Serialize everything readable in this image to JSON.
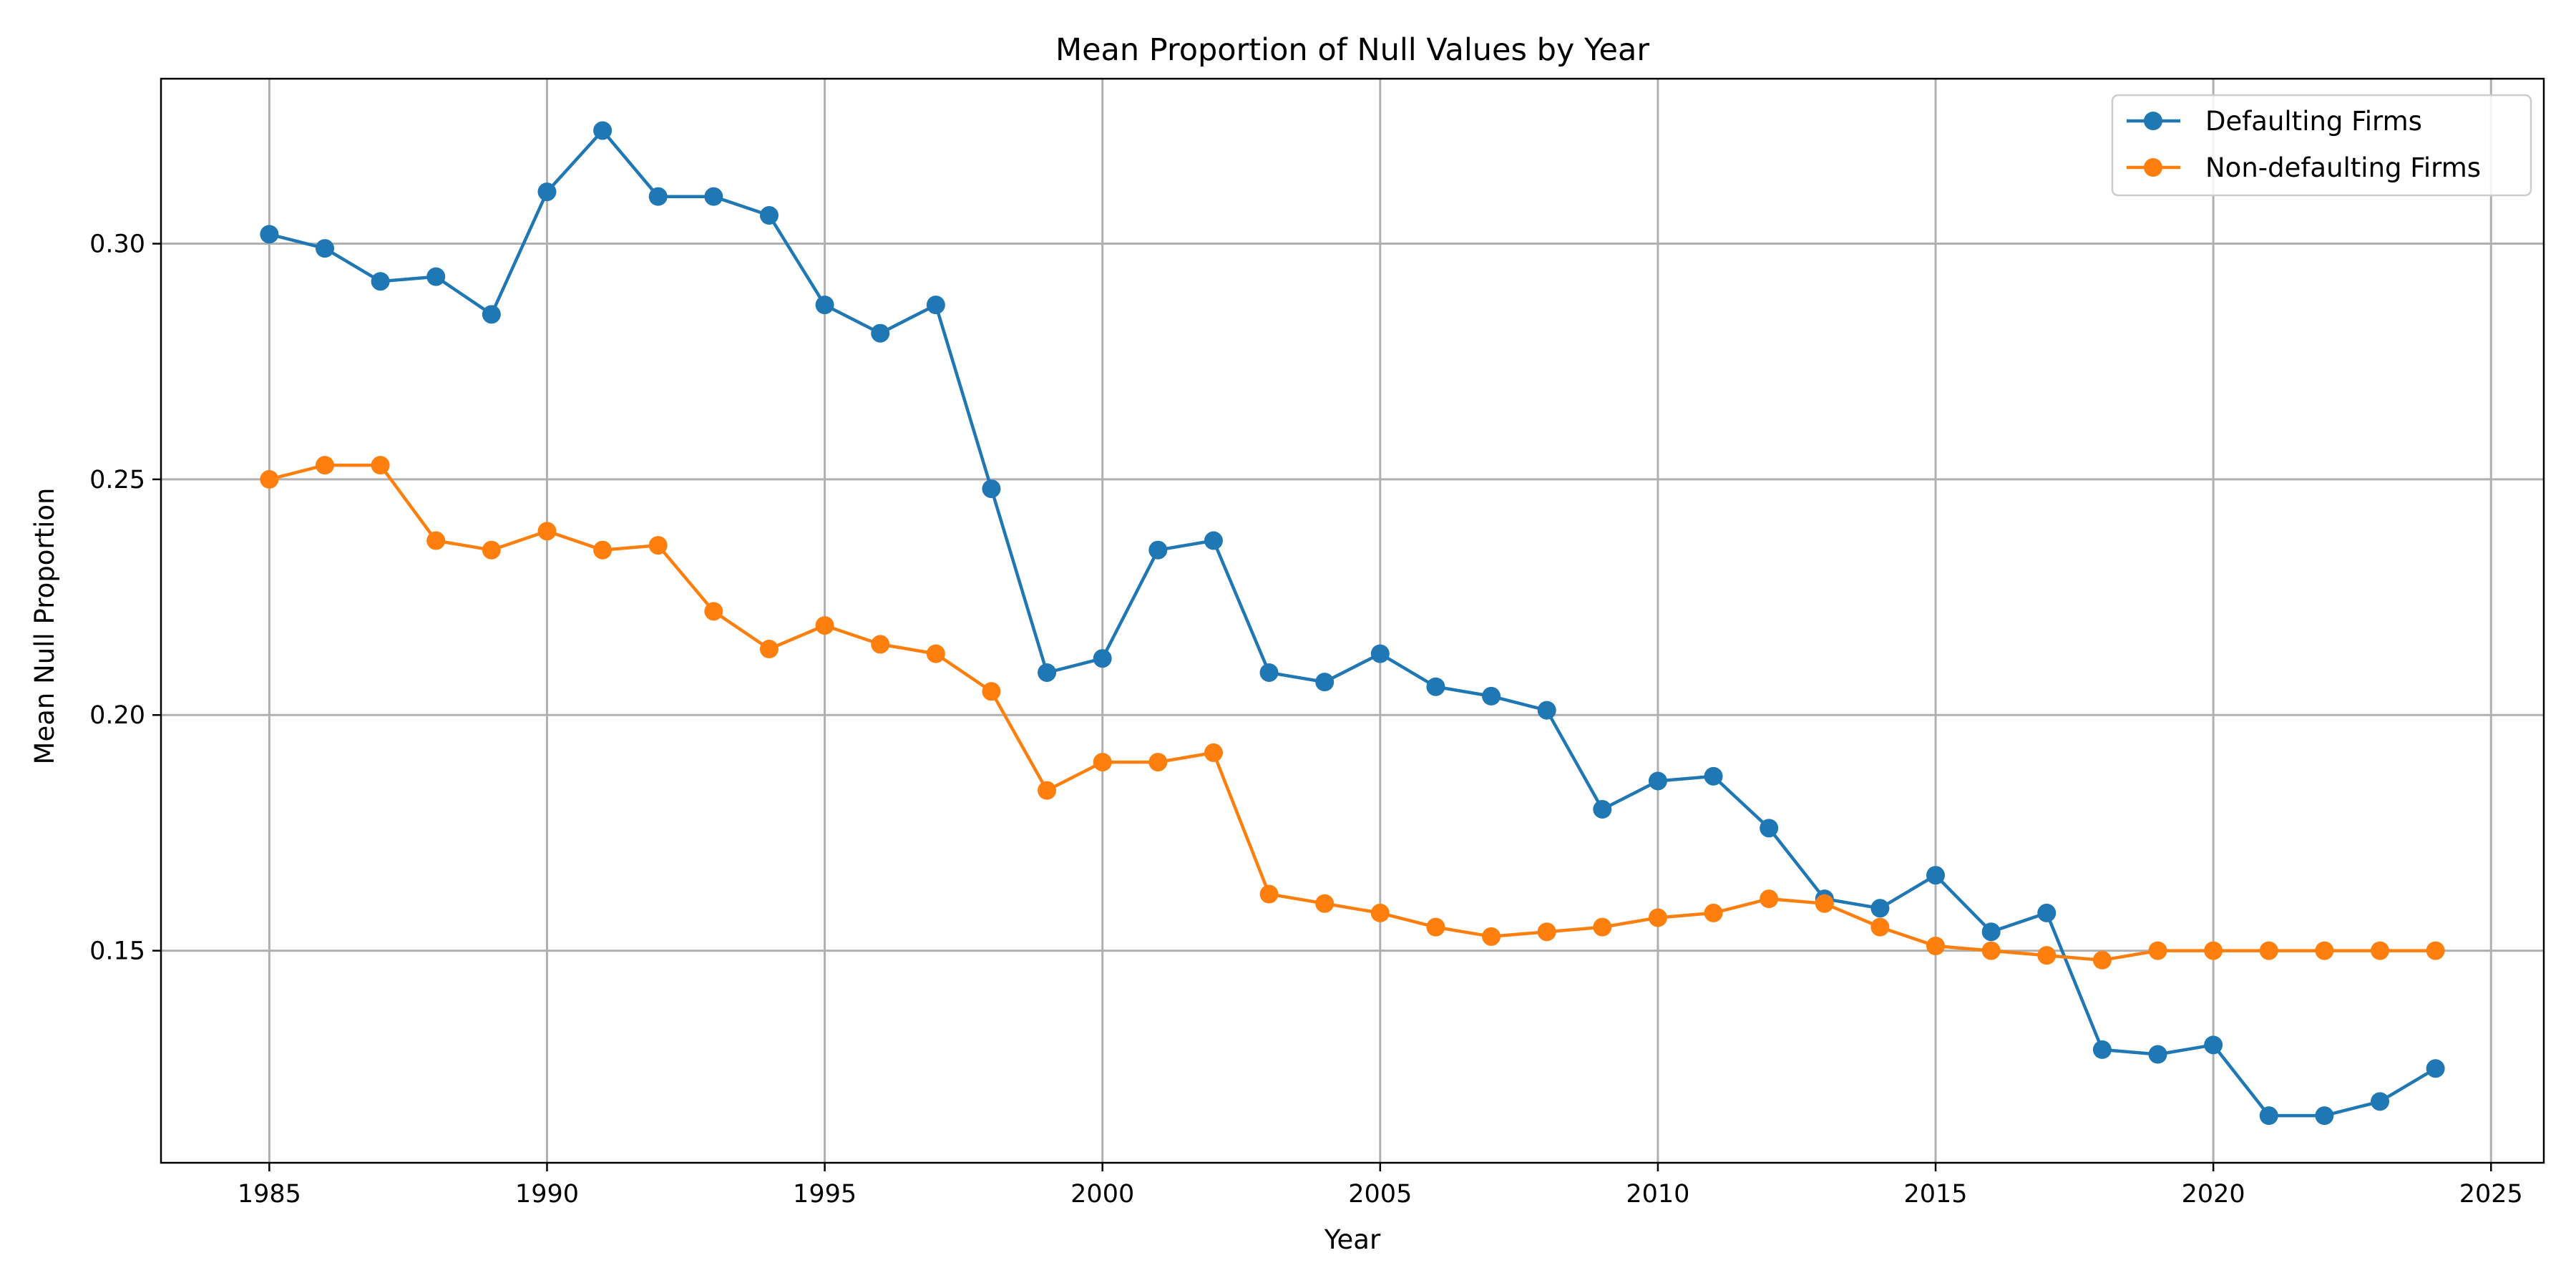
{
  "chart_data": {
    "type": "line",
    "title": "Mean Proportion of Null Values by Year",
    "xlabel": "Year",
    "ylabel": "Mean Null Proportion",
    "xlim": [
      1983.05,
      2025.95
    ],
    "ylim": [
      0.105,
      0.335
    ],
    "xticks": [
      1985,
      1990,
      1995,
      2000,
      2005,
      2010,
      2015,
      2020,
      2025
    ],
    "xtick_labels": [
      "1985",
      "1990",
      "1995",
      "2000",
      "2005",
      "2010",
      "2015",
      "2020",
      "2025"
    ],
    "yticks": [
      0.15,
      0.2,
      0.25,
      0.3
    ],
    "ytick_labels": [
      "0.15",
      "0.20",
      "0.25",
      "0.30"
    ],
    "grid": true,
    "legend_position": "top-right",
    "x": [
      1985,
      1986,
      1987,
      1988,
      1989,
      1990,
      1991,
      1992,
      1993,
      1994,
      1995,
      1996,
      1997,
      1998,
      1999,
      2000,
      2001,
      2002,
      2003,
      2004,
      2005,
      2006,
      2007,
      2008,
      2009,
      2010,
      2011,
      2012,
      2013,
      2014,
      2015,
      2016,
      2017,
      2018,
      2019,
      2020,
      2021,
      2022,
      2023,
      2024
    ],
    "series": [
      {
        "name": "Defaulting Firms",
        "color": "#1f77b4",
        "marker": "circle",
        "values": [
          0.302,
          0.299,
          0.292,
          0.293,
          0.285,
          0.311,
          0.324,
          0.31,
          0.31,
          0.306,
          0.287,
          0.281,
          0.287,
          0.248,
          0.209,
          0.212,
          0.235,
          0.237,
          0.209,
          0.207,
          0.213,
          0.206,
          0.204,
          0.201,
          0.18,
          0.186,
          0.187,
          0.176,
          0.161,
          0.159,
          0.166,
          0.154,
          0.158,
          0.129,
          0.128,
          0.13,
          0.115,
          0.115,
          0.118,
          0.125
        ]
      },
      {
        "name": "Non-defaulting Firms",
        "color": "#ff7f0e",
        "marker": "circle",
        "values": [
          0.25,
          0.253,
          0.253,
          0.237,
          0.235,
          0.239,
          0.235,
          0.236,
          0.222,
          0.214,
          0.219,
          0.215,
          0.213,
          0.205,
          0.184,
          0.19,
          0.19,
          0.192,
          0.162,
          0.16,
          0.158,
          0.155,
          0.153,
          0.154,
          0.155,
          0.157,
          0.158,
          0.161,
          0.16,
          0.155,
          0.151,
          0.15,
          0.149,
          0.148,
          0.15,
          0.15,
          0.15,
          0.15,
          0.15,
          0.15
        ]
      }
    ]
  }
}
